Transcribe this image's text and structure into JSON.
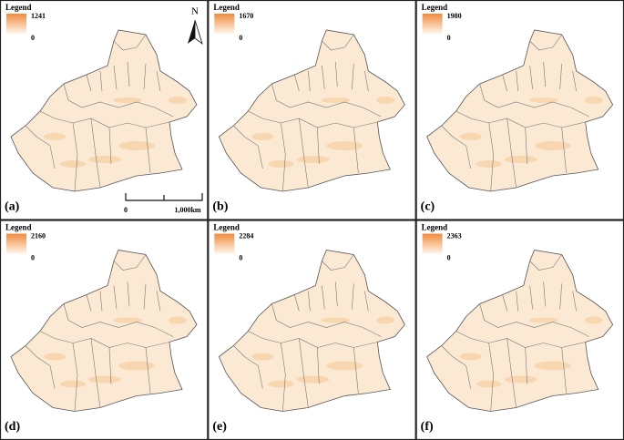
{
  "panels": [
    {
      "label": "(a)",
      "legend_title": "Legend",
      "max": 1241,
      "min": 0
    },
    {
      "label": "(b)",
      "legend_title": "Legend",
      "max": 1670,
      "min": 0
    },
    {
      "label": "(c)",
      "legend_title": "Legend",
      "max": 1980,
      "min": 0
    },
    {
      "label": "(d)",
      "legend_title": "Legend",
      "max": 2160,
      "min": 0
    },
    {
      "label": "(e)",
      "legend_title": "Legend",
      "max": 2284,
      "min": 0
    },
    {
      "label": "(f)",
      "legend_title": "Legend",
      "max": 2363,
      "min": 0
    }
  ],
  "north_arrow": "N",
  "scale_bar": {
    "start": 0,
    "end": "1,000km"
  }
}
